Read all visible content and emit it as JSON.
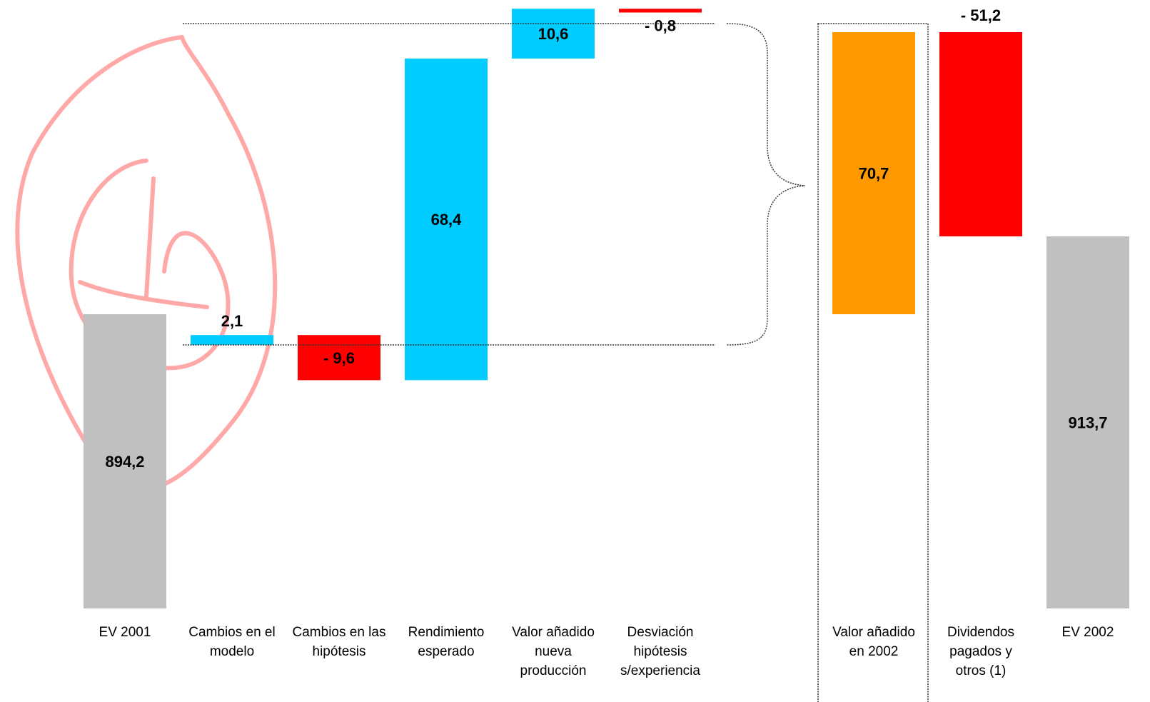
{
  "chart_data": {
    "type": "bar",
    "subtype": "waterfall",
    "title": "",
    "xlabel": "",
    "ylabel": "",
    "categories": [
      "EV 2001",
      "Cambios en el modelo",
      "Cambios en las hipótesis",
      "Rendimiento esperado",
      "Valor añadido nueva producción",
      "Desviación hipótesis s/experiencia",
      "Valor añadido en 2002",
      "Dividendos pagados y otros (1)",
      "EV 2002"
    ],
    "category_lines": [
      [
        "EV 2001"
      ],
      [
        "Cambios en el",
        "modelo"
      ],
      [
        "Cambios en las",
        "hipótesis"
      ],
      [
        "Rendimiento",
        "esperado"
      ],
      [
        "Valor añadido",
        "nueva",
        "producción"
      ],
      [
        "Desviación",
        "hipótesis",
        "s/experiencia"
      ],
      [
        "Valor añadido",
        "en 2002"
      ],
      [
        "Dividendos",
        "pagados y",
        "otros (1)"
      ],
      [
        "EV 2002"
      ]
    ],
    "values": [
      894.2,
      2.1,
      -9.6,
      68.4,
      10.6,
      -0.8,
      70.7,
      -51.2,
      913.7
    ],
    "value_labels": [
      "894,2",
      "2,1",
      "- 9,6",
      "68,4",
      "10,6",
      "- 0,8",
      "70,7",
      "- 51,2",
      "913,7"
    ],
    "bar_kind": [
      "total",
      "delta",
      "delta",
      "delta",
      "delta",
      "delta",
      "subtotal",
      "delta",
      "total"
    ],
    "colors": {
      "total": "#c0c0c0",
      "increase": "#00ccff",
      "decrease": "#ff0000",
      "subtotal": "#ff9900",
      "watermark": "#ff9a9a"
    },
    "notes": "Waterfall bridge from EV 2001 to EV 2002; bracket groups the five components of Valor añadido en 2002; red circular watermark stamp in background.",
    "grid": false,
    "legend": "none"
  }
}
